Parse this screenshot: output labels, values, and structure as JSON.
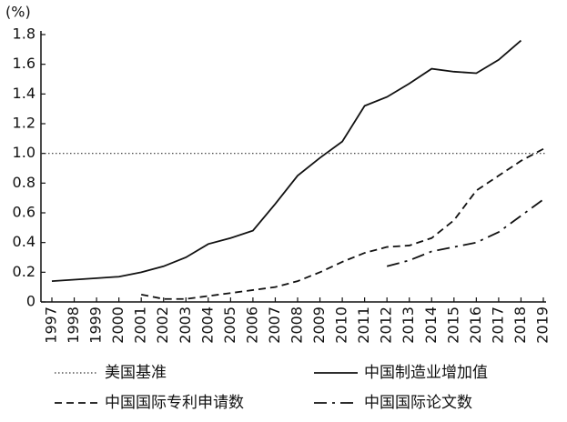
{
  "chart_data": {
    "type": "line",
    "y_unit": "(%)",
    "categories": [
      "1997",
      "1998",
      "1999",
      "2000",
      "2001",
      "2002",
      "2003",
      "2004",
      "2005",
      "2006",
      "2007",
      "2008",
      "2009",
      "2010",
      "2011",
      "2012",
      "2013",
      "2014",
      "2015",
      "2016",
      "2017",
      "2018",
      "2019"
    ],
    "ylim": [
      0,
      1.8
    ],
    "yticks": [
      0,
      0.2,
      0.4,
      0.6,
      0.8,
      {
        "value": 1,
        "label": "1.0"
      },
      1.2,
      1.4,
      1.6,
      1.8
    ],
    "series": [
      {
        "name": "美国基准",
        "color": "#333333",
        "dash": "dotted",
        "values": [
          1,
          1,
          1,
          1,
          1,
          1,
          1,
          1,
          1,
          1,
          1,
          1,
          1,
          1,
          1,
          1,
          1,
          1,
          1,
          1,
          1,
          1,
          1
        ]
      },
      {
        "name": "中国制造业增加值",
        "color": "#111111",
        "dash": "solid",
        "values": [
          0.14,
          0.15,
          0.16,
          0.17,
          0.2,
          0.24,
          0.3,
          0.39,
          0.43,
          0.48,
          0.66,
          0.85,
          0.97,
          1.08,
          1.32,
          1.38,
          1.47,
          1.57,
          1.55,
          1.54,
          1.63,
          1.76,
          null
        ]
      },
      {
        "name": "中国国际专利申请数",
        "color": "#111111",
        "dash": "dashed",
        "values": [
          null,
          null,
          null,
          null,
          0.05,
          0.02,
          0.02,
          0.04,
          0.06,
          0.08,
          0.1,
          0.14,
          0.2,
          0.27,
          0.33,
          0.37,
          0.38,
          0.43,
          0.55,
          0.75,
          0.85,
          0.95,
          1.03
        ]
      },
      {
        "name": "中国国际论文数",
        "color": "#111111",
        "dash": "dashdot",
        "values": [
          null,
          null,
          null,
          null,
          null,
          null,
          null,
          null,
          null,
          null,
          null,
          null,
          null,
          null,
          null,
          0.24,
          0.28,
          0.34,
          0.37,
          0.4,
          0.47,
          0.58,
          0.69
        ]
      }
    ]
  }
}
